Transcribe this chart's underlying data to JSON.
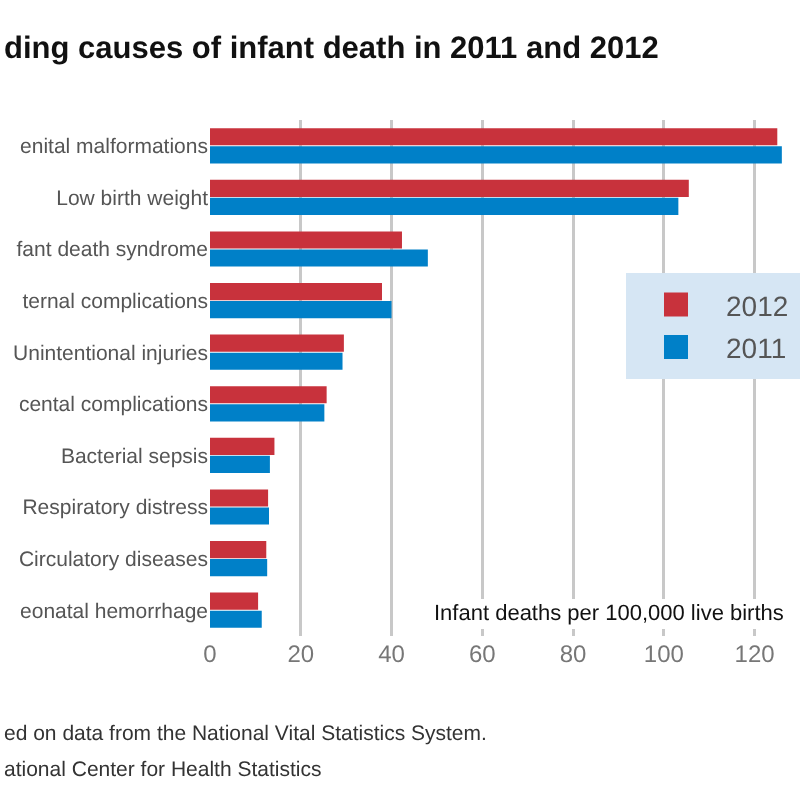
{
  "chart_data": {
    "type": "bar",
    "orientation": "horizontal",
    "title": "ding causes of infant death in 2011 and 2012",
    "xlabel": "Infant deaths per 100,000 live births",
    "categories": [
      "enital malformations",
      "Low birth weight",
      "fant death syndrome",
      "ternal complications",
      "Unintentional injuries",
      "cental complications",
      "Bacterial sepsis",
      "Respiratory distress",
      "Circulatory diseases",
      "eonatal hemorrhage"
    ],
    "series": [
      {
        "name": "2012",
        "color": "#c8323c",
        "values": [
          125,
          105.5,
          42.3,
          37.9,
          29.5,
          25.7,
          14.2,
          12.8,
          12.4,
          10.6
        ]
      },
      {
        "name": "2011",
        "color": "#0080c8",
        "values": [
          126,
          103.2,
          48,
          40,
          29.2,
          25.2,
          13.2,
          13,
          12.6,
          11.4
        ]
      }
    ],
    "xlim": [
      0,
      130
    ],
    "xticks": [
      0,
      20,
      40,
      60,
      80,
      100,
      120
    ],
    "grid": "x",
    "legend": "right",
    "annotations": [
      "ed on data from the National Vital Statistics System.",
      "ational Center for Health Statistics"
    ]
  }
}
